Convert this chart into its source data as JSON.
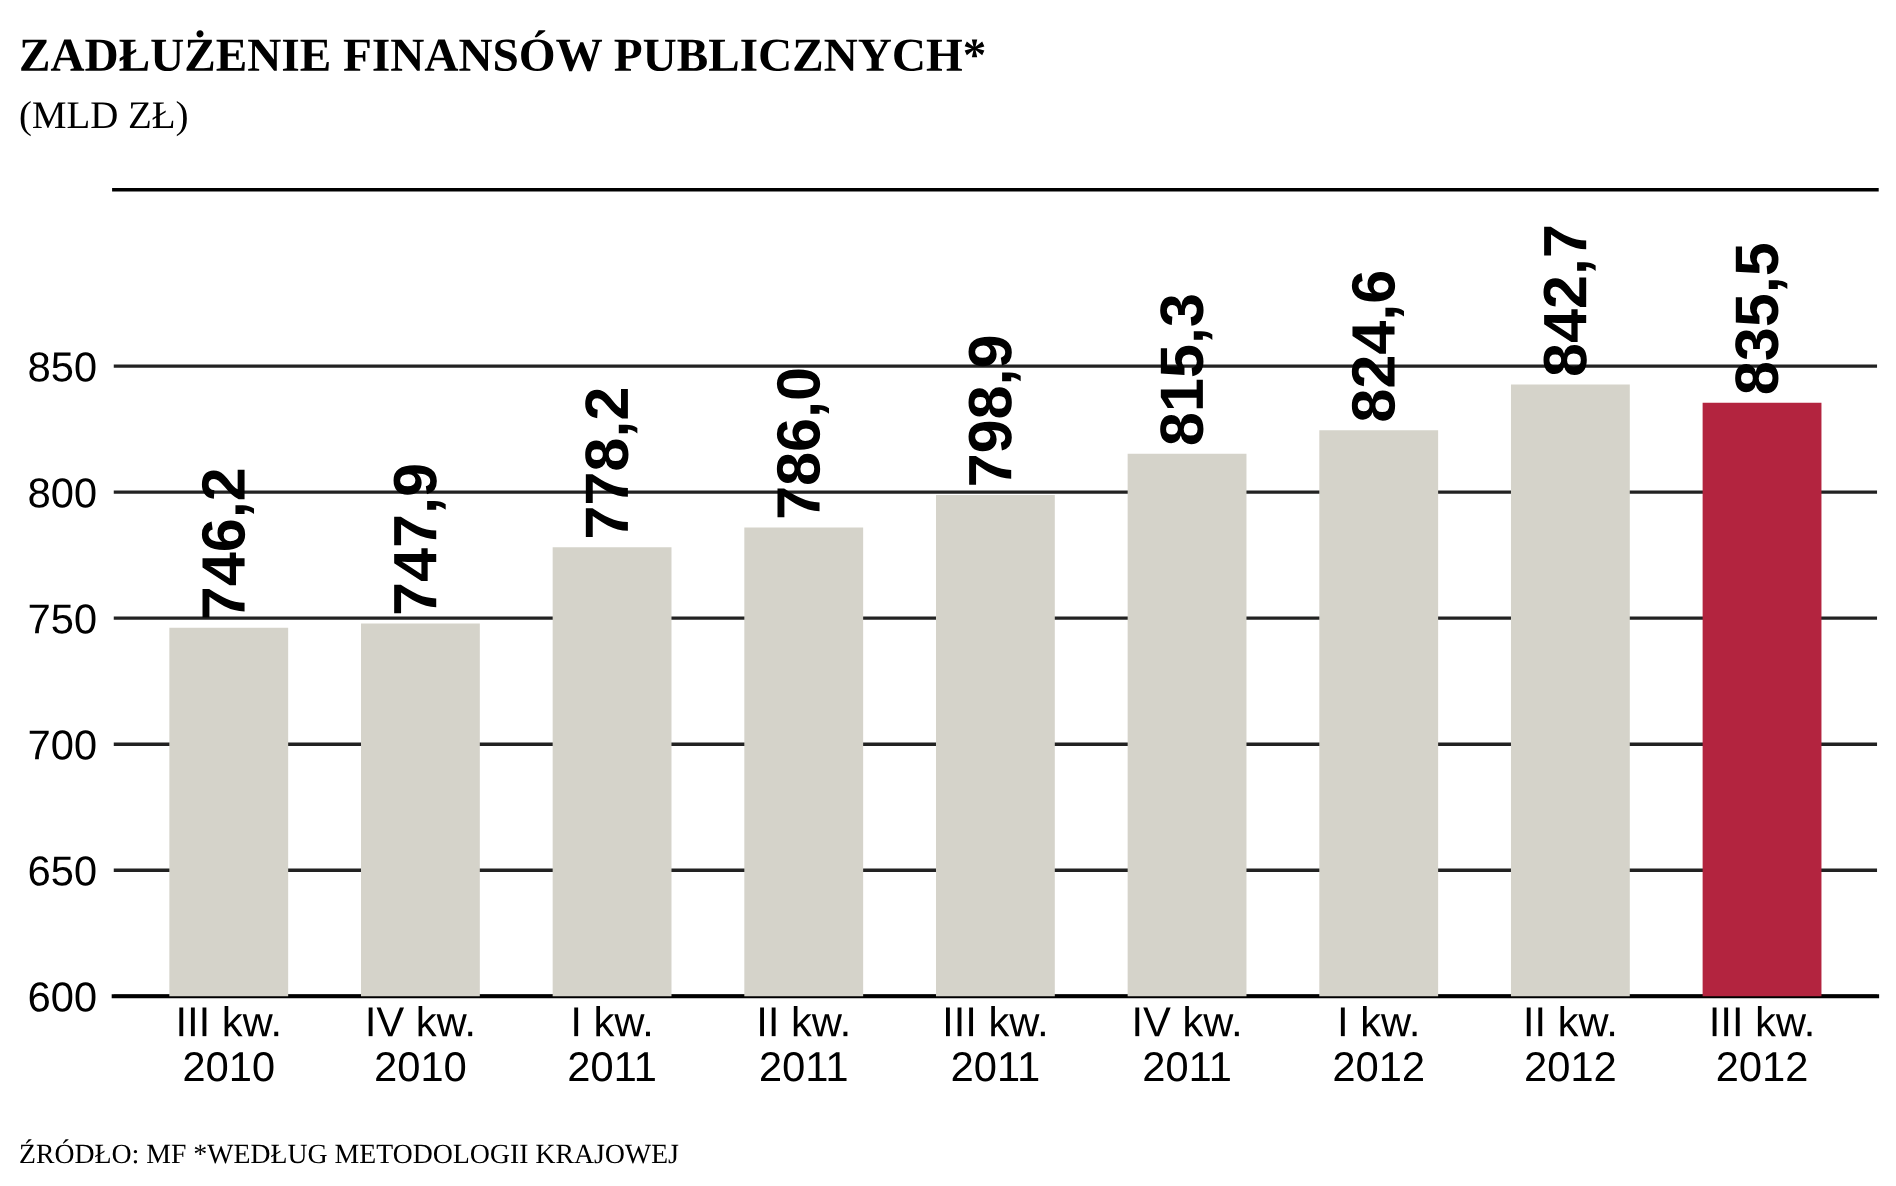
{
  "chart_data": {
    "type": "bar",
    "title": "ZADŁUŻENIE FINANSÓW PUBLICZNYCH*",
    "subtitle": "(MLD ZŁ)",
    "categories": [
      "III kw.\n2010",
      "IV kw.\n2010",
      "I kw.\n2011",
      "II kw.\n2011",
      "III kw.\n2011",
      "IV kw.\n2011",
      "I kw.\n2012",
      "II kw.\n2012",
      "III kw.\n2012"
    ],
    "values": [
      746.2,
      747.9,
      778.2,
      786.0,
      798.9,
      815.3,
      824.6,
      842.7,
      835.5
    ],
    "value_labels": [
      "746,2",
      "747,9",
      "778,2",
      "786,0",
      "798,9",
      "815,3",
      "824,6",
      "842,7",
      "835,5"
    ],
    "colors": [
      "#d5d3ca",
      "#d5d3ca",
      "#d5d3ca",
      "#d5d3ca",
      "#d5d3ca",
      "#d5d3ca",
      "#d5d3ca",
      "#d5d3ca",
      "#b3243f"
    ],
    "ylim": [
      600,
      920
    ],
    "yticks": [
      600,
      650,
      700,
      750,
      800,
      850
    ],
    "grid": "y",
    "annotations": [
      "ŹRÓDŁO: MF *WEDŁUG METODOLOGII KRAJOWEJ"
    ]
  }
}
